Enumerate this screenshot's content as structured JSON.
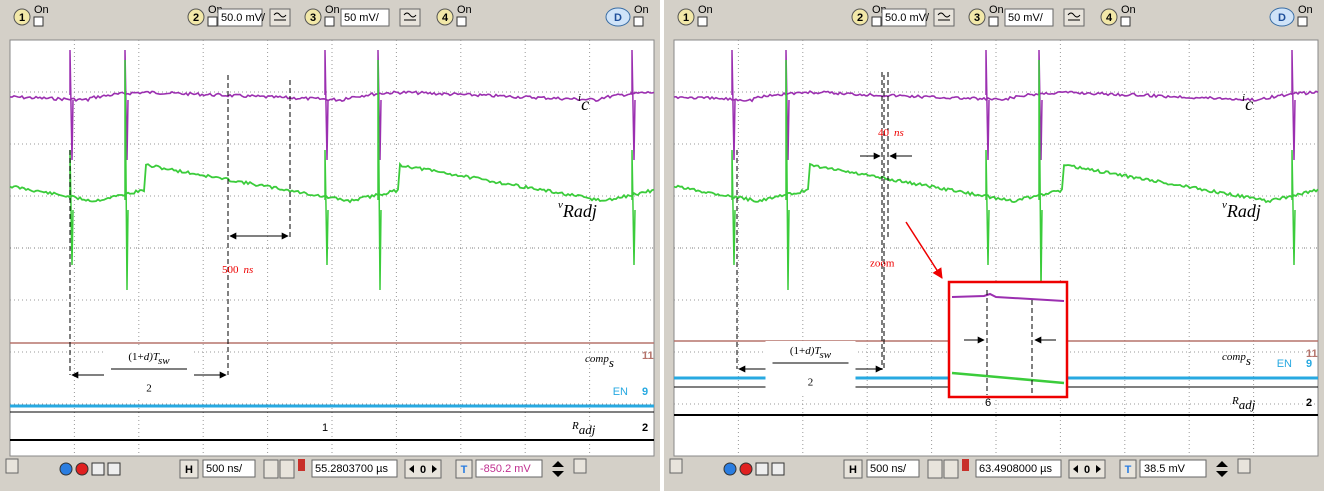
{
  "panels": [
    {
      "toolbar": {
        "ch1": "1",
        "ch1_state": "On",
        "ch2": "2",
        "ch2_state": "On",
        "ch2_scale": "50.0 mV/",
        "ch3": "3",
        "ch3_state": "On",
        "ch3_scale": "50 mV/",
        "ch4": "4",
        "ch4_state": "On",
        "display": "D",
        "display_state": "On"
      },
      "annotations": {
        "ic_main": "i",
        "ic_sub": "c",
        "v_main": "v",
        "v_sub": "Radj",
        "interval_value": "500",
        "interval_unit": "ns",
        "fraction_num_a": "(1+",
        "fraction_num_d": "d",
        "fraction_num_b": ")T",
        "fraction_num_sub": "sw",
        "fraction_den": "2"
      },
      "channels": {
        "comp_main": "comp",
        "comp_sub": "s",
        "comp_num": "11",
        "en": "EN",
        "en_num": "9",
        "radj_main": "R",
        "radj_sub": "adj",
        "radj_num": "2",
        "trigger_marker": "1"
      },
      "status_bar": {
        "h": "H",
        "timebase": "500 ns/",
        "position": "55.2803700 µs",
        "zero": "0",
        "t": "T",
        "level": "-850.2 mV"
      }
    },
    {
      "toolbar": {
        "ch1": "1",
        "ch1_state": "On",
        "ch2": "2",
        "ch2_state": "On",
        "ch2_scale": "50.0 mV/",
        "ch3": "3",
        "ch3_state": "On",
        "ch3_scale": "50 mV/",
        "ch4": "4",
        "ch4_state": "On",
        "display": "D",
        "display_state": "On"
      },
      "annotations": {
        "ic_main": "i",
        "ic_sub": "c",
        "v_main": "v",
        "v_sub": "Radj",
        "interval_value": "40",
        "interval_unit": "ns",
        "zoom": "zoom",
        "fraction_num_a": "(1+",
        "fraction_num_d": "d",
        "fraction_num_b": ")T",
        "fraction_num_sub": "sw",
        "fraction_den": "2"
      },
      "channels": {
        "comp_main": "comp",
        "comp_sub": "s",
        "comp_num": "11",
        "en": "EN",
        "en_num": "9",
        "radj_main": "R",
        "radj_sub": "adj",
        "radj_num": "2",
        "trigger_marker": "6"
      },
      "status_bar": {
        "h": "H",
        "timebase": "500 ns/",
        "position": "63.4908000 µs",
        "zero": "0",
        "t": "T",
        "level": "38.5 mV"
      }
    }
  ]
}
